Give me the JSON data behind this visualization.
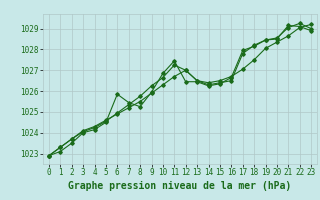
{
  "xlabel": "Graphe pression niveau de la mer (hPa)",
  "xlim": [
    -0.5,
    23.5
  ],
  "ylim": [
    1022.5,
    1029.7
  ],
  "yticks": [
    1023,
    1024,
    1025,
    1026,
    1027,
    1028,
    1029
  ],
  "xticks": [
    0,
    1,
    2,
    3,
    4,
    5,
    6,
    7,
    8,
    9,
    10,
    11,
    12,
    13,
    14,
    15,
    16,
    17,
    18,
    19,
    20,
    21,
    22,
    23
  ],
  "bg_color": "#c8e8e8",
  "grid_color": "#b0c8c8",
  "line_color": "#1a6b1a",
  "series1": [
    [
      0,
      1022.9
    ],
    [
      1,
      1023.3
    ],
    [
      2,
      1023.7
    ],
    [
      3,
      1024.05
    ],
    [
      4,
      1024.25
    ],
    [
      5,
      1024.55
    ],
    [
      6,
      1024.95
    ],
    [
      7,
      1025.35
    ],
    [
      8,
      1025.75
    ],
    [
      9,
      1026.25
    ],
    [
      10,
      1026.65
    ],
    [
      11,
      1027.25
    ],
    [
      12,
      1027.0
    ],
    [
      13,
      1026.5
    ],
    [
      14,
      1026.3
    ],
    [
      15,
      1026.4
    ],
    [
      16,
      1026.5
    ],
    [
      17,
      1027.8
    ],
    [
      18,
      1028.2
    ],
    [
      19,
      1028.45
    ],
    [
      20,
      1028.55
    ],
    [
      21,
      1029.05
    ],
    [
      22,
      1029.25
    ],
    [
      23,
      1029.0
    ]
  ],
  "series2": [
    [
      0,
      1022.9
    ],
    [
      1,
      1023.1
    ],
    [
      2,
      1023.5
    ],
    [
      3,
      1024.0
    ],
    [
      4,
      1024.15
    ],
    [
      5,
      1024.5
    ],
    [
      6,
      1025.85
    ],
    [
      7,
      1025.45
    ],
    [
      8,
      1025.25
    ],
    [
      9,
      1025.95
    ],
    [
      10,
      1026.85
    ],
    [
      11,
      1027.45
    ],
    [
      12,
      1026.45
    ],
    [
      13,
      1026.45
    ],
    [
      14,
      1026.25
    ],
    [
      15,
      1026.35
    ],
    [
      16,
      1026.65
    ],
    [
      17,
      1027.95
    ],
    [
      18,
      1028.15
    ],
    [
      19,
      1028.45
    ],
    [
      20,
      1028.5
    ],
    [
      21,
      1029.15
    ],
    [
      22,
      1029.1
    ],
    [
      23,
      1028.9
    ]
  ],
  "series3": [
    [
      0,
      1022.9
    ],
    [
      1,
      1023.3
    ],
    [
      2,
      1023.7
    ],
    [
      3,
      1024.1
    ],
    [
      4,
      1024.3
    ],
    [
      5,
      1024.6
    ],
    [
      6,
      1024.9
    ],
    [
      7,
      1025.2
    ],
    [
      8,
      1025.5
    ],
    [
      9,
      1025.9
    ],
    [
      10,
      1026.3
    ],
    [
      11,
      1026.7
    ],
    [
      12,
      1027.0
    ],
    [
      13,
      1026.5
    ],
    [
      14,
      1026.4
    ],
    [
      15,
      1026.5
    ],
    [
      16,
      1026.7
    ],
    [
      17,
      1027.05
    ],
    [
      18,
      1027.5
    ],
    [
      19,
      1028.05
    ],
    [
      20,
      1028.35
    ],
    [
      21,
      1028.65
    ],
    [
      22,
      1029.05
    ],
    [
      23,
      1029.2
    ]
  ],
  "font_color": "#1a6b1a",
  "tick_fontsize": 5.5,
  "label_fontsize": 7.0
}
